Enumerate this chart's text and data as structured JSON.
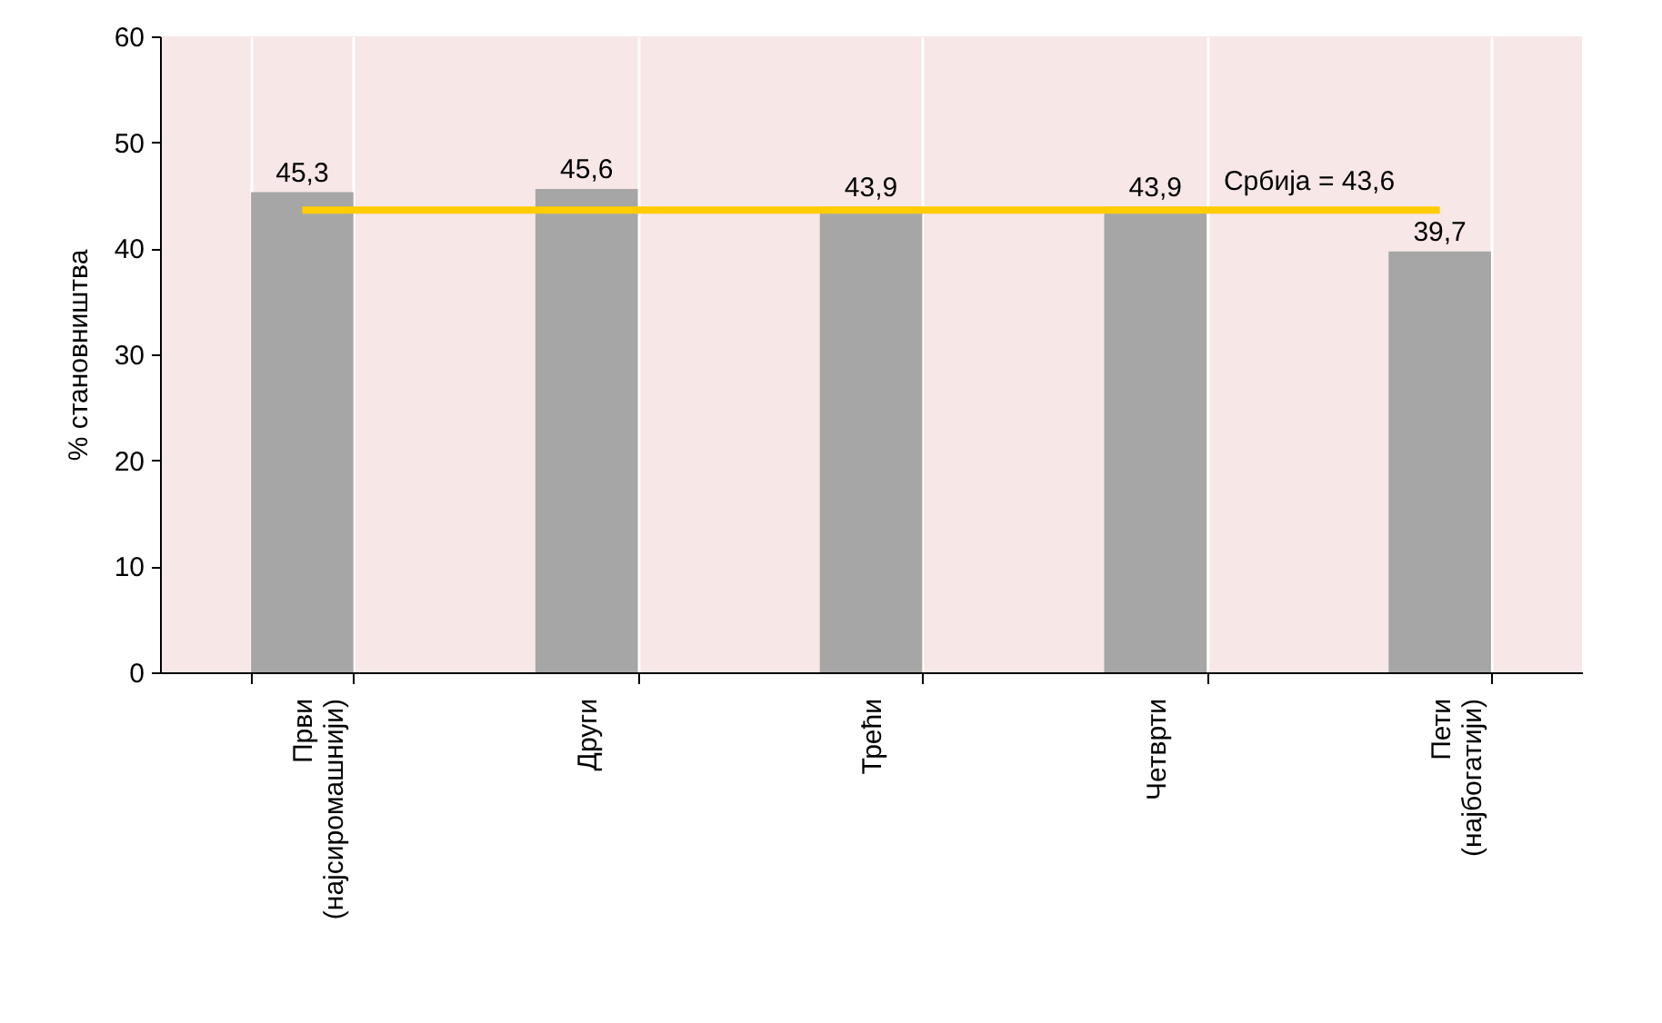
{
  "chart_data": {
    "type": "bar",
    "ylabel": "% становништва",
    "categories": [
      "Први (најсиромашнији)",
      "Други",
      "Трећи",
      "Четврти",
      "Пети (најбогатији)"
    ],
    "values": [
      45.3,
      45.6,
      43.9,
      43.9,
      39.7
    ],
    "value_labels": [
      "45,3",
      "45,6",
      "43,9",
      "43,9",
      "39,7"
    ],
    "color": "#a6a6a6",
    "ylim": [
      0,
      60
    ],
    "yticks": [
      0,
      10,
      20,
      30,
      40,
      50,
      60
    ],
    "grid": "x",
    "ref_lines": [
      {
        "axis": "y",
        "value": 43.6,
        "label": "Србија = 43,6",
        "color": "#ffcc00"
      }
    ]
  }
}
